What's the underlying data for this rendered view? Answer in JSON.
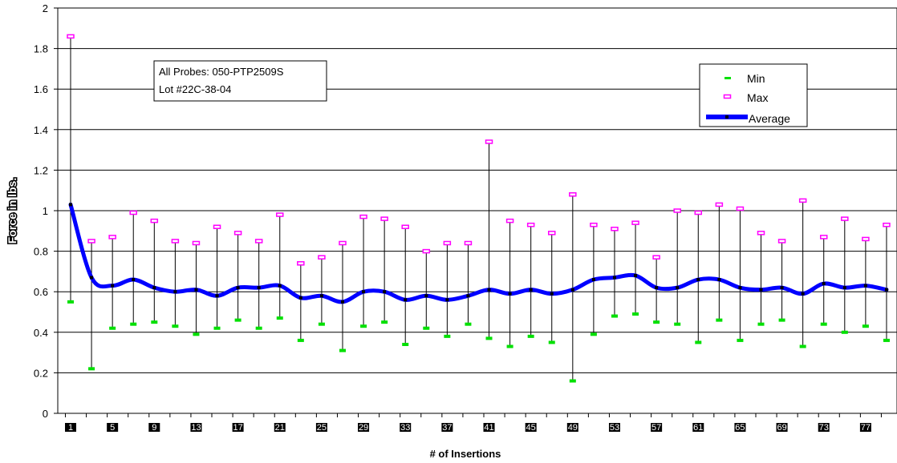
{
  "chart_data": {
    "type": "line",
    "title": "",
    "xlabel": "# of Insertions",
    "ylabel": "Force in lbs.",
    "ylim": [
      0,
      2
    ],
    "yticks": [
      "0",
      "0.2",
      "0.4",
      "0.6",
      "0.8",
      "1",
      "1.2",
      "1.4",
      "1.6",
      "1.8",
      "2"
    ],
    "grid": true,
    "legend_position": "top-right",
    "annotation_lines": [
      "All Probes: 050-PTP2509S",
      "Lot #22C-38-04"
    ],
    "x": [
      1,
      3,
      5,
      7,
      9,
      11,
      13,
      15,
      17,
      19,
      21,
      23,
      25,
      27,
      29,
      31,
      33,
      35,
      37,
      39,
      41,
      43,
      45,
      47,
      49,
      51,
      53,
      55,
      57,
      59,
      61,
      63,
      65,
      67,
      69,
      71,
      73,
      75,
      77,
      79
    ],
    "xtick_labels": [
      "1",
      "5",
      "9",
      "13",
      "17",
      "21",
      "25",
      "29",
      "33",
      "37",
      "41",
      "45",
      "49",
      "53",
      "57",
      "61",
      "65",
      "69",
      "73",
      "77"
    ],
    "series": [
      {
        "name": "Min",
        "color": "#00e000",
        "values": [
          0.55,
          0.22,
          0.42,
          0.44,
          0.45,
          0.43,
          0.39,
          0.42,
          0.46,
          0.42,
          0.47,
          0.36,
          0.44,
          0.31,
          0.43,
          0.45,
          0.34,
          0.42,
          0.38,
          0.44,
          0.37,
          0.33,
          0.38,
          0.35,
          0.16,
          0.39,
          0.48,
          0.49,
          0.45,
          0.44,
          0.35,
          0.46,
          0.36,
          0.44,
          0.46,
          0.33,
          0.44,
          0.4,
          0.43,
          0.36
        ]
      },
      {
        "name": "Max",
        "color": "#ff00ff",
        "values": [
          1.86,
          0.85,
          0.87,
          0.99,
          0.95,
          0.85,
          0.84,
          0.92,
          0.89,
          0.85,
          0.98,
          0.74,
          0.77,
          0.84,
          0.97,
          0.96,
          0.92,
          0.8,
          0.84,
          0.84,
          1.34,
          0.95,
          0.93,
          0.89,
          1.08,
          0.93,
          0.91,
          0.94,
          0.77,
          1.0,
          0.99,
          1.03,
          1.01,
          0.89,
          0.85,
          1.05,
          0.87,
          0.96,
          0.86,
          0.93
        ]
      },
      {
        "name": "Average",
        "color": "#0000ff",
        "values": [
          1.03,
          0.67,
          0.63,
          0.66,
          0.62,
          0.6,
          0.61,
          0.58,
          0.62,
          0.62,
          0.63,
          0.57,
          0.58,
          0.55,
          0.6,
          0.6,
          0.56,
          0.58,
          0.56,
          0.58,
          0.61,
          0.59,
          0.61,
          0.59,
          0.61,
          0.66,
          0.67,
          0.68,
          0.62,
          0.62,
          0.66,
          0.66,
          0.62,
          0.61,
          0.62,
          0.59,
          0.64,
          0.62,
          0.63,
          0.61
        ]
      }
    ]
  }
}
